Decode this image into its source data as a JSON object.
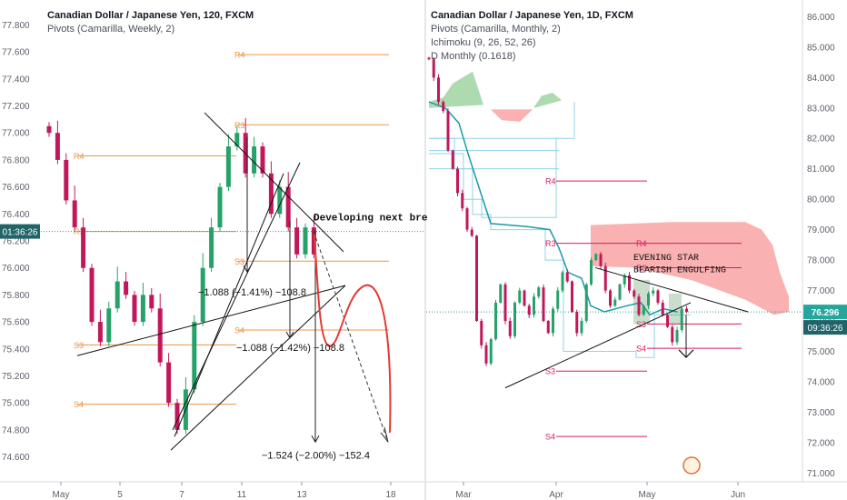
{
  "colors": {
    "background": "#ffffff",
    "candle_up": "#26a269",
    "candle_down": "#c2185b",
    "pivot_weekly": "#e8954a",
    "pivot_monthly": "#d81b60",
    "ichimoku_base": "#1a9aa8",
    "ichimoku_lines": "#8fd3e8",
    "cloud_bull": "#a5d6a7",
    "cloud_bear": "#f8a9a9",
    "projection": "#e53935",
    "price_line": "#2a9d8f",
    "price_tag": "#26a69a",
    "time_tag": "#20646a"
  },
  "left_panel": {
    "title": "Canadian Dollar / Japanese Yen, 120, FXCM",
    "subtitle": "Pivots (Camarilla, Weekly, 2)",
    "current_price_label": "01:36:26"
  },
  "right_panel": {
    "title": "Canadian Dollar / Japanese Yen, 1D, FXCM",
    "subtitle1": "Pivots (Camarilla, Monthly, 2)",
    "subtitle2": "Ichimoku (9, 26, 52, 26)",
    "subtitle3": "D Monthly (0.1618)",
    "price_label": "76.296",
    "time_label": "09:36:26"
  },
  "chart_data": [
    {
      "type": "candlestick",
      "panel": "left",
      "y_ticks": [
        "77.800",
        "77.600",
        "77.400",
        "77.200",
        "77.000",
        "76.800",
        "76.600",
        "76.400",
        "76.200",
        "76.000",
        "75.800",
        "75.600",
        "75.400",
        "75.200",
        "75.000",
        "74.800",
        "74.600"
      ],
      "x_ticks": [
        "May",
        "5",
        "7",
        "11",
        "13",
        "18"
      ],
      "ylim": [
        74.55,
        77.85
      ],
      "current_price": 76.27,
      "pivots": [
        {
          "label": "R4",
          "value": 77.58,
          "span": "week2"
        },
        {
          "label": "R3",
          "value": 77.06,
          "span": "week2"
        },
        {
          "label": "R4",
          "value": 76.83,
          "span": "week1"
        },
        {
          "label": "R3",
          "value": 76.27,
          "span": "week1"
        },
        {
          "label": "S3",
          "value": 76.05,
          "span": "week2"
        },
        {
          "label": "S4",
          "value": 75.54,
          "span": "week2"
        },
        {
          "label": "S3",
          "value": 75.43,
          "span": "week1"
        },
        {
          "label": "S4",
          "value": 74.99,
          "span": "week1"
        }
      ],
      "annotations": [
        "Developing next bre",
        "−1.088 (−1.41%) −108.8",
        "−1.088 (−1.42%) −108.8",
        "−1.524 (−2.00%) −152.4"
      ],
      "closes": [
        77.0,
        76.8,
        76.5,
        76.3,
        76.0,
        75.6,
        75.45,
        75.7,
        75.9,
        75.8,
        75.6,
        75.8,
        75.7,
        75.3,
        75.0,
        74.8,
        75.1,
        75.6,
        76.0,
        76.3,
        76.6,
        76.9,
        77.0,
        76.7,
        76.9,
        76.7,
        76.4,
        76.6,
        76.3,
        76.1,
        76.3,
        76.1
      ]
    },
    {
      "type": "candlestick",
      "panel": "right",
      "y_ticks": [
        "86.000",
        "85.000",
        "84.000",
        "83.000",
        "82.000",
        "81.000",
        "80.000",
        "79.000",
        "78.000",
        "77.000",
        "76.000",
        "75.000",
        "74.000",
        "73.000",
        "72.000",
        "71.000"
      ],
      "x_ticks": [
        "Mar",
        "Apr",
        "May",
        "Jun"
      ],
      "ylim": [
        70.95,
        86.25
      ],
      "last_price": 76.296,
      "pivots": [
        {
          "label": "R4",
          "value": 80.6
        },
        {
          "label": "R3",
          "value": 78.55
        },
        {
          "label": "S3",
          "value": 74.35
        },
        {
          "label": "S4",
          "value": 72.2
        },
        {
          "label": "R4",
          "value": 78.55
        },
        {
          "label": "R3",
          "value": 77.75
        },
        {
          "label": "S3",
          "value": 75.9
        },
        {
          "label": "S4",
          "value": 75.1
        }
      ],
      "annotations": [
        "EVENING STAR",
        "BEARISH ENGULFING"
      ],
      "closes": [
        84.6,
        84.0,
        83.2,
        82.9,
        81.6,
        81.0,
        80.2,
        79.7,
        79.0,
        78.8,
        76.0,
        75.2,
        74.6,
        75.4,
        76.6,
        77.2,
        76.0,
        75.5,
        76.6,
        77.0,
        76.5,
        76.2,
        76.8,
        77.1,
        76.0,
        75.6,
        76.4,
        77.0,
        77.6,
        77.3,
        76.3,
        75.6,
        76.0,
        77.2,
        78.0,
        78.2,
        77.8,
        77.0,
        76.5,
        76.7,
        77.2,
        77.5,
        77.0,
        76.8,
        76.2,
        76.5,
        76.9,
        77.0,
        76.6,
        76.2,
        75.8,
        75.3,
        75.7,
        76.4,
        76.3
      ]
    }
  ]
}
